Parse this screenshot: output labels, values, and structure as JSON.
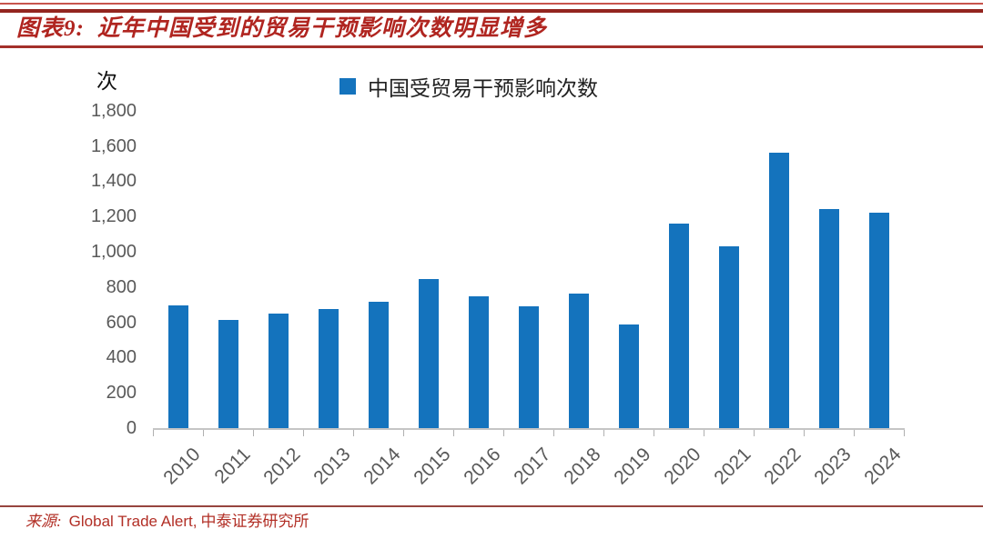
{
  "header": {
    "title_prefix": "图表9:",
    "title_text": "近年中国受到的贸易干预影响次数明显增多"
  },
  "chart_data": {
    "type": "bar",
    "title": "图表9: 近年中国受到的贸易干预影响次数明显增多",
    "ylabel": "次",
    "xlabel": "",
    "legend": [
      "中国受贸易干预影响次数"
    ],
    "legend_position": "top-center",
    "grid": false,
    "categories": [
      "2010",
      "2011",
      "2012",
      "2013",
      "2014",
      "2015",
      "2016",
      "2017",
      "2018",
      "2019",
      "2020",
      "2021",
      "2022",
      "2023",
      "2024"
    ],
    "values": [
      695,
      615,
      650,
      675,
      715,
      845,
      745,
      690,
      765,
      590,
      1160,
      1030,
      1560,
      1240,
      1220
    ],
    "ylim": [
      0,
      1800
    ],
    "ytick_step": 200,
    "bar_color": "#1473bd"
  },
  "footer": {
    "source_label": "来源:",
    "source_latin": "Global Trade Alert,",
    "source_cn": "中泰证券研究所"
  },
  "colors": {
    "accent_red": "#b02520",
    "bar_blue": "#1473bd",
    "axis_text_gray": "#595959"
  }
}
